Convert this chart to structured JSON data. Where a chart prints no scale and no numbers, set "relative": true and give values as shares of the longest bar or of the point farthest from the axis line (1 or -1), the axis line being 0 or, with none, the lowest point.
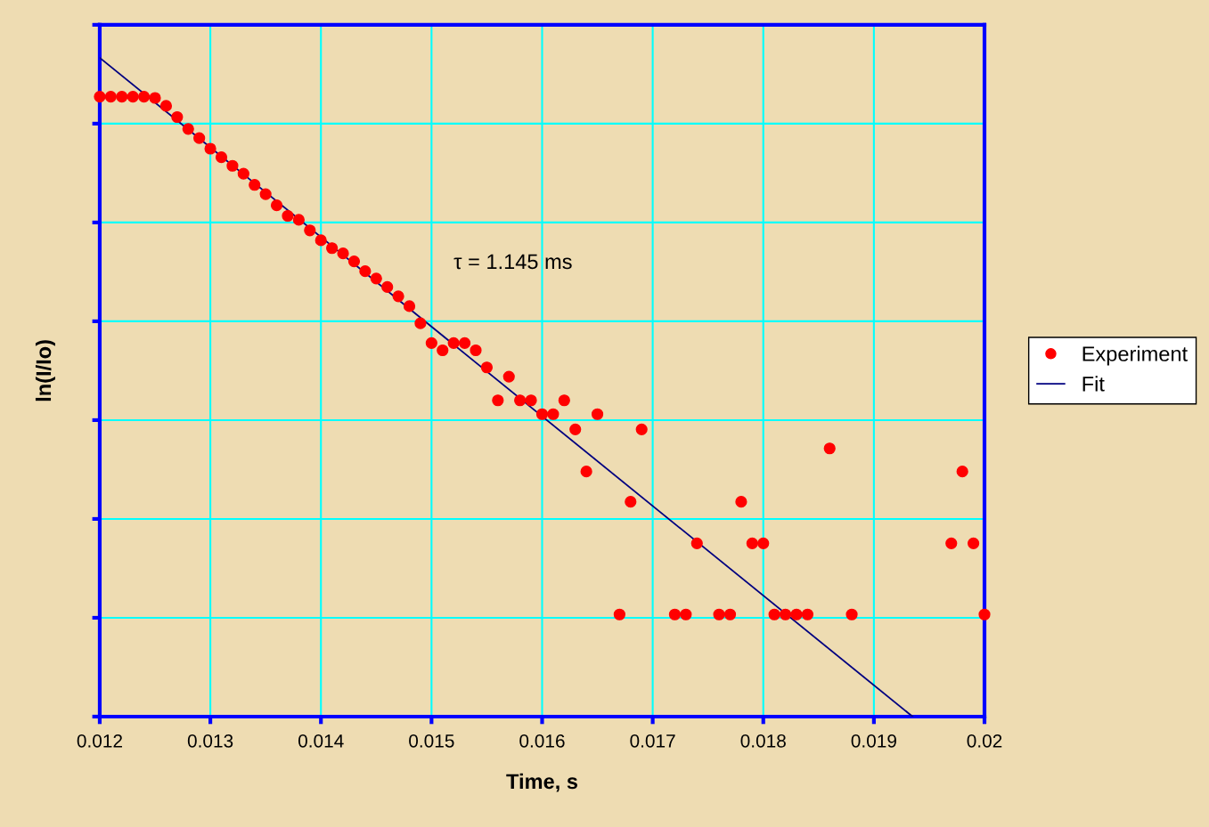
{
  "chart_data": {
    "type": "scatter",
    "xlabel": "Time, s",
    "ylabel": "ln(I/Io)",
    "relative": true,
    "xlim": [
      0.012,
      0.02
    ],
    "xticks": [
      0.012,
      0.013,
      0.014,
      0.015,
      0.016,
      0.017,
      0.018,
      0.019,
      0.02
    ],
    "grid": true,
    "legend": "right",
    "annotations": [
      "τ = 1.145 ms"
    ],
    "series": [
      {
        "name": "Experiment",
        "marker": "circle",
        "color": "#ff0000",
        "x": [
          0.012,
          0.0121,
          0.0122,
          0.0123,
          0.0124,
          0.0125,
          0.0126,
          0.0127,
          0.0128,
          0.0129,
          0.013,
          0.0131,
          0.0132,
          0.0133,
          0.0134,
          0.0135,
          0.0136,
          0.0137,
          0.0138,
          0.0139,
          0.014,
          0.0141,
          0.0142,
          0.0143,
          0.0144,
          0.0145,
          0.0146,
          0.0147,
          0.0148,
          0.0149,
          0.015,
          0.0151,
          0.0152,
          0.0153,
          0.0154,
          0.0155,
          0.0156,
          0.0157,
          0.0158,
          0.0159,
          0.016,
          0.0161,
          0.0162,
          0.0163,
          0.0164,
          0.0165,
          0.0167,
          0.0168,
          0.0169,
          0.0172,
          0.0173,
          0.0174,
          0.0176,
          0.0177,
          0.0178,
          0.0179,
          0.018,
          0.0181,
          0.0182,
          0.0183,
          0.0184,
          0.0186,
          0.0188,
          0.0197,
          0.0198,
          0.0199,
          0.02
        ],
        "values": [
          0.941,
          0.941,
          0.941,
          0.941,
          0.941,
          0.939,
          0.927,
          0.91,
          0.892,
          0.878,
          0.862,
          0.849,
          0.836,
          0.824,
          0.807,
          0.793,
          0.776,
          0.76,
          0.754,
          0.738,
          0.723,
          0.711,
          0.703,
          0.691,
          0.676,
          0.665,
          0.652,
          0.638,
          0.623,
          0.597,
          0.567,
          0.556,
          0.567,
          0.567,
          0.556,
          0.53,
          0.48,
          0.516,
          0.48,
          0.48,
          0.459,
          0.459,
          0.48,
          0.436,
          0.372,
          0.459,
          0.155,
          0.326,
          0.436,
          0.155,
          0.155,
          0.263,
          0.155,
          0.155,
          0.326,
          0.263,
          0.263,
          0.155,
          0.155,
          0.155,
          0.155,
          0.407,
          0.155,
          0.263,
          0.372,
          0.263,
          0.155
        ]
      },
      {
        "name": "Fit",
        "type": "line",
        "color": "#000080",
        "x": [
          0.012,
          0.01935
        ],
        "values": [
          1.0,
          0
        ]
      }
    ]
  }
}
